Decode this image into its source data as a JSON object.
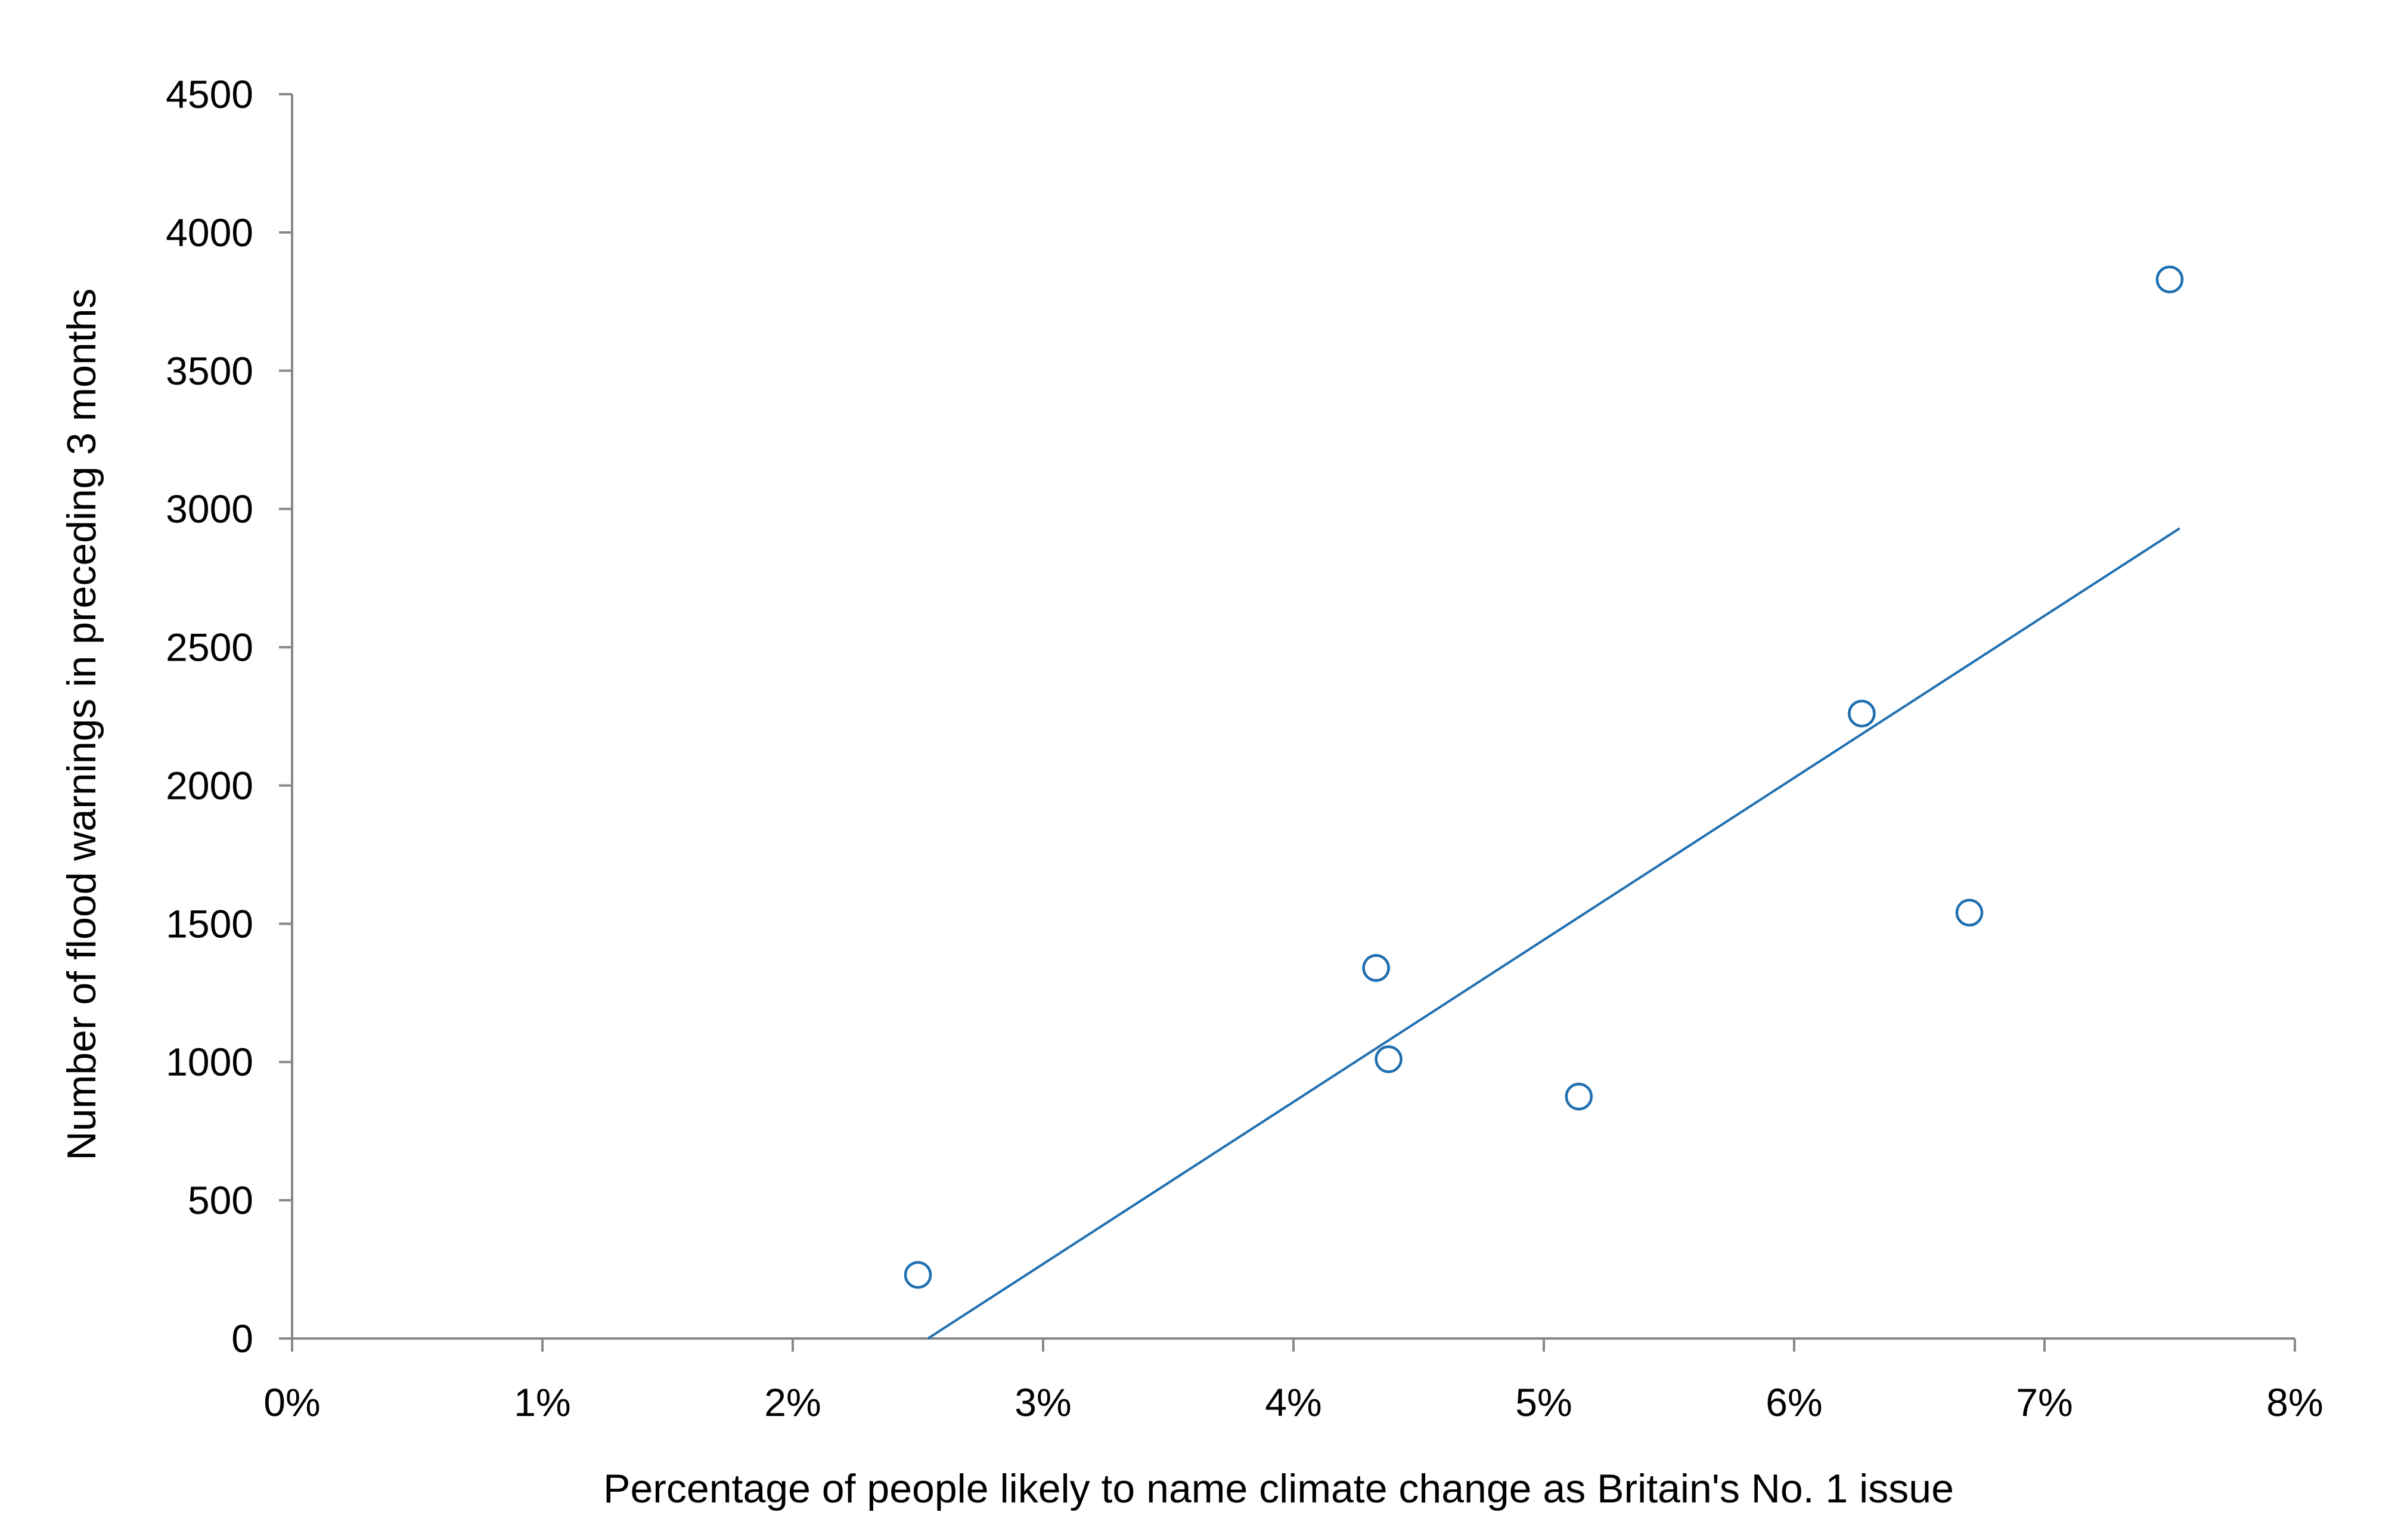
{
  "chart_data": {
    "type": "scatter",
    "title": "",
    "xlabel": "Percentage of people likely to name climate change as Britain's No. 1 issue",
    "ylabel": "Number of flood warnings in preceding 3 months",
    "xlim": [
      0,
      8
    ],
    "ylim": [
      0,
      4500
    ],
    "x_ticks": [
      0,
      1,
      2,
      3,
      4,
      5,
      6,
      7,
      8
    ],
    "x_tick_labels": [
      "0%",
      "1%",
      "2%",
      "3%",
      "4%",
      "5%",
      "6%",
      "7%",
      "8%"
    ],
    "y_ticks": [
      0,
      500,
      1000,
      1500,
      2000,
      2500,
      3000,
      3500,
      4000,
      4500
    ],
    "y_tick_labels": [
      "0",
      "500",
      "1000",
      "1500",
      "2000",
      "2500",
      "3000",
      "3500",
      "4000",
      "4500"
    ],
    "grid": false,
    "legend": "none",
    "colors": {
      "marker": "#1f6fb0",
      "trendline": "#1f6fb0",
      "axis": "#888888"
    },
    "points": [
      {
        "x": 2.5,
        "y": 230
      },
      {
        "x": 4.33,
        "y": 1340
      },
      {
        "x": 4.38,
        "y": 1010
      },
      {
        "x": 5.14,
        "y": 875
      },
      {
        "x": 6.27,
        "y": 2260
      },
      {
        "x": 6.7,
        "y": 1540
      },
      {
        "x": 7.5,
        "y": 3830
      }
    ],
    "trendline": {
      "x": [
        2.54,
        7.54
      ],
      "y": [
        0,
        2930
      ]
    }
  }
}
